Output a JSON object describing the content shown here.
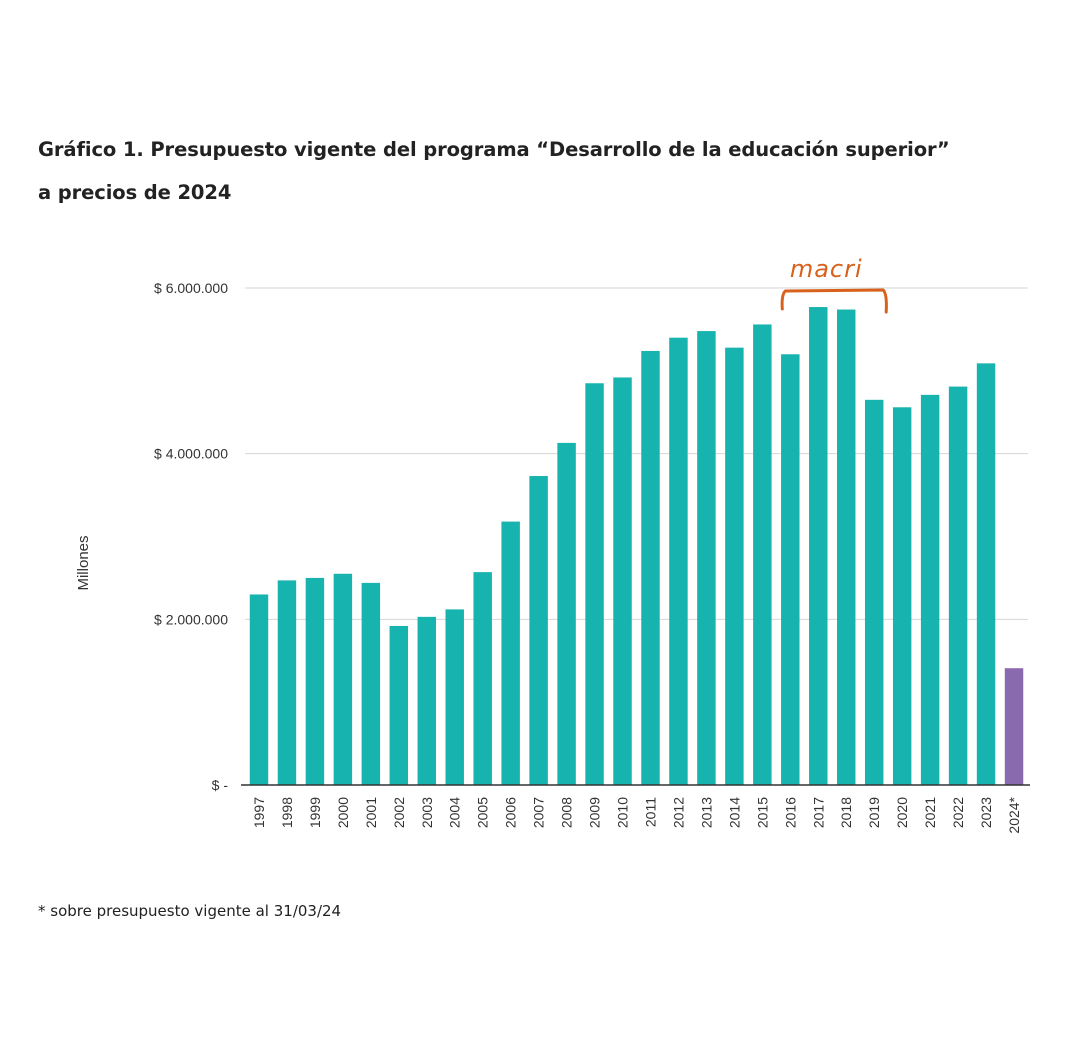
{
  "title": {
    "line1": "Gráfico 1. Presupuesto vigente del programa “Desarrollo de la educación superior”",
    "line2": "a precios de 2024"
  },
  "footnote": "* sobre presupuesto vigente al 31/03/24",
  "colors": {
    "bar": "#17b3ae",
    "bar_highlight": "#8a6aae",
    "grid": "#d6d6d6",
    "axis": "#333333",
    "annotation": "#d8621c"
  },
  "chart_data": {
    "type": "bar",
    "title": "Gráfico 1. Presupuesto vigente del programa “Desarrollo de la educación superior” a precios de 2024",
    "xlabel": "",
    "ylabel": "Millones",
    "ylim": [
      0,
      6000000
    ],
    "yticks": [
      0,
      2000000,
      4000000,
      6000000
    ],
    "ytick_labels": [
      "$ -",
      "$ 2.000.000",
      "$ 4.000.000",
      "$ 6.000.000"
    ],
    "grid": true,
    "categories": [
      "1997",
      "1998",
      "1999",
      "2000",
      "2001",
      "2002",
      "2003",
      "2004",
      "2005",
      "2006",
      "2007",
      "2008",
      "2009",
      "2010",
      "2011",
      "2012",
      "2013",
      "2014",
      "2015",
      "2016",
      "2017",
      "2018",
      "2019",
      "2020",
      "2021",
      "2022",
      "2023",
      "2024*"
    ],
    "values": [
      2300000,
      2470000,
      2500000,
      2550000,
      2440000,
      1920000,
      2030000,
      2120000,
      2570000,
      3180000,
      3730000,
      4130000,
      4850000,
      4920000,
      5240000,
      5400000,
      5480000,
      5280000,
      5560000,
      5200000,
      5770000,
      5740000,
      4650000,
      4560000,
      4710000,
      4810000,
      5090000,
      1410000
    ],
    "highlight_index": 27,
    "annotation": {
      "text": "macri",
      "from": "2016",
      "to": "2019"
    }
  }
}
